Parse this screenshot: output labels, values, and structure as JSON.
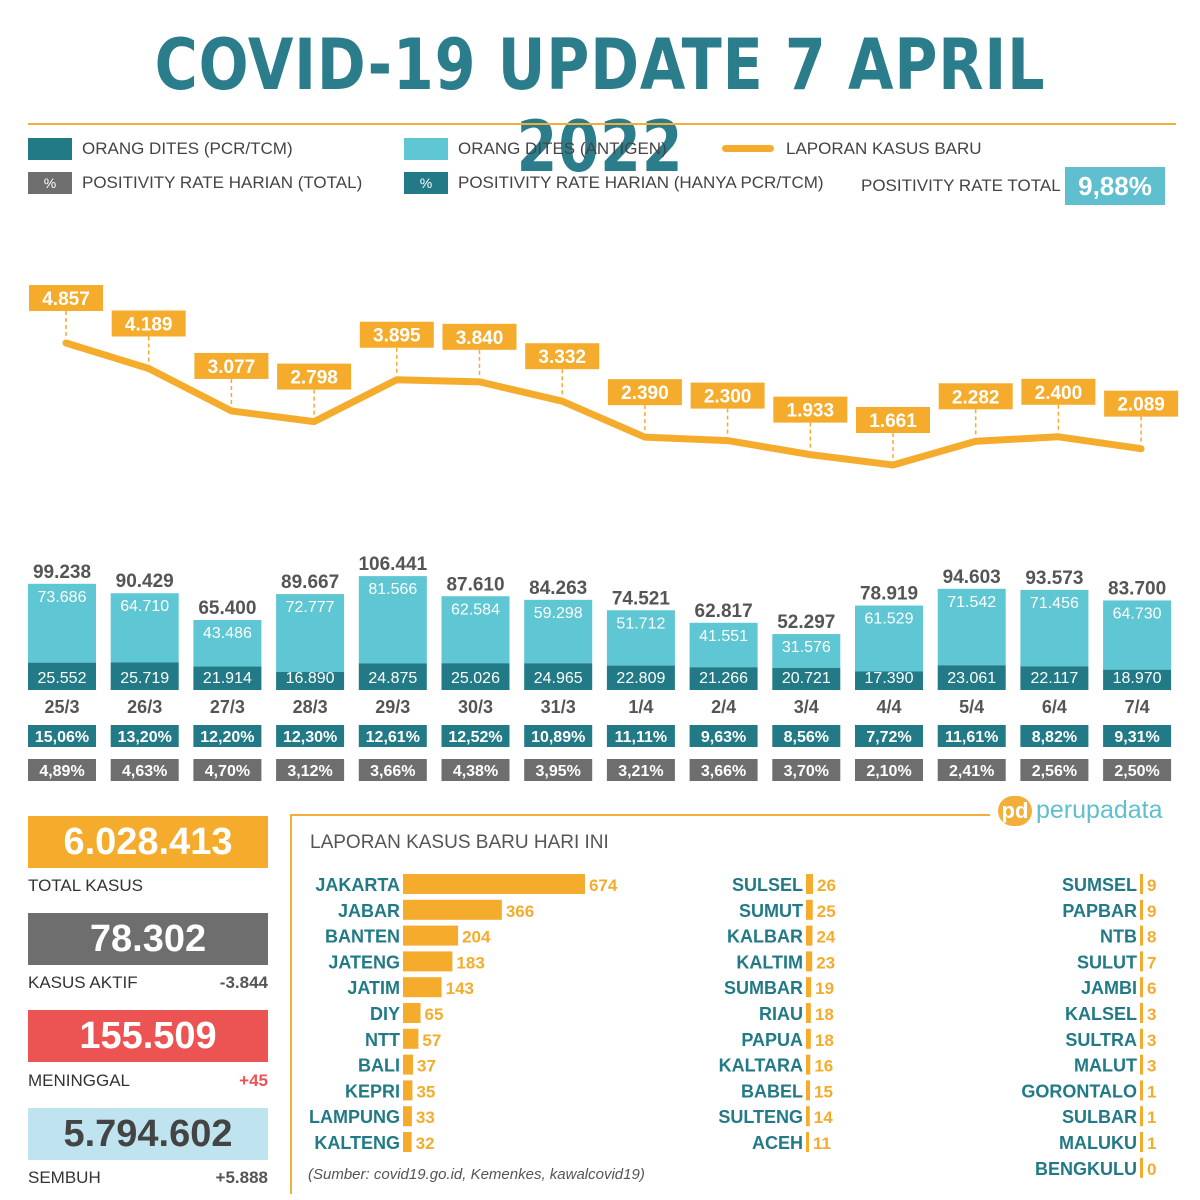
{
  "title": "COVID-19 UPDATE 7 APRIL 2022",
  "legend": {
    "pcr": "ORANG DITES (PCR/TCM)",
    "antigen": "ORANG DITES (ANTIGEN)",
    "cases": "LAPORAN KASUS BARU",
    "pos_total": "POSITIVITY RATE HARIAN (TOTAL)",
    "pos_pcr": "POSITIVITY RATE HARIAN (HANYA PCR/TCM)",
    "pct_symbol": "%",
    "pr_total_label": "POSITIVITY RATE TOTAL",
    "pr_total_value": "9,88%"
  },
  "colors": {
    "pcr": "#217a86",
    "antigen": "#5fc6d3",
    "cases": "#f5ac2d",
    "pos_total": "#6e6e6e",
    "pos_pcr": "#217a86",
    "title": "#2b7d8b",
    "aktif": "#6e6e6e",
    "meninggal": "#ec5453",
    "sembuh": "#bfe4ef"
  },
  "chart_data": {
    "type": "bar",
    "categories": [
      "25/3",
      "26/3",
      "27/3",
      "28/3",
      "29/3",
      "30/3",
      "31/3",
      "1/4",
      "2/4",
      "3/4",
      "4/4",
      "5/4",
      "6/4",
      "7/4"
    ],
    "total_labels": [
      "99.238",
      "90.429",
      "65.400",
      "89.667",
      "106.441",
      "87.610",
      "84.263",
      "74.521",
      "62.817",
      "52.297",
      "78.919",
      "94.603",
      "93.573",
      "83.700"
    ],
    "series": [
      {
        "name": "ORANG DITES (PCR/TCM)",
        "values": [
          25552,
          25719,
          21914,
          16890,
          24875,
          25026,
          24965,
          22809,
          21266,
          20721,
          17390,
          23061,
          22117,
          18970
        ],
        "labels": [
          "25.552",
          "25.719",
          "21.914",
          "16.890",
          "24.875",
          "25.026",
          "24.965",
          "22.809",
          "21.266",
          "20.721",
          "17.390",
          "23.061",
          "22.117",
          "18.970"
        ]
      },
      {
        "name": "ORANG DITES (ANTIGEN)",
        "values": [
          73686,
          64710,
          43486,
          72777,
          81566,
          62584,
          59298,
          51712,
          41551,
          31576,
          61529,
          71542,
          71456,
          64730
        ],
        "labels": [
          "73.686",
          "64.710",
          "43.486",
          "72.777",
          "81.566",
          "62.584",
          "59.298",
          "51.712",
          "41.551",
          "31.576",
          "61.529",
          "71.542",
          "71.456",
          "64.730"
        ]
      }
    ],
    "line": {
      "name": "LAPORAN KASUS BARU",
      "values": [
        4857,
        4189,
        3077,
        2798,
        3895,
        3840,
        3332,
        2390,
        2300,
        1933,
        1661,
        2282,
        2400,
        2089
      ],
      "labels": [
        "4.857",
        "4.189",
        "3.077",
        "2.798",
        "3.895",
        "3.840",
        "3.332",
        "2.390",
        "2.300",
        "1.933",
        "1.661",
        "2.282",
        "2.400",
        "2.089"
      ]
    },
    "positivity_total": [
      "15,06%",
      "13,20%",
      "12,20%",
      "12,30%",
      "12,61%",
      "12,52%",
      "10,89%",
      "11,11%",
      "9,63%",
      "8,56%",
      "7,72%",
      "11,61%",
      "8,82%",
      "9,31%"
    ],
    "positivity_pcr": [
      "4,89%",
      "4,63%",
      "4,70%",
      "3,12%",
      "3,66%",
      "4,38%",
      "3,95%",
      "3,21%",
      "3,66%",
      "3,70%",
      "2,10%",
      "2,41%",
      "2,56%",
      "2,50%"
    ]
  },
  "stats": {
    "total": {
      "value": "6.028.413",
      "label": "TOTAL KASUS"
    },
    "aktif": {
      "value": "78.302",
      "label": "KASUS AKTIF",
      "delta": "-3.844"
    },
    "meninggal": {
      "value": "155.509",
      "label": "MENINGGAL",
      "delta": "+45"
    },
    "sembuh": {
      "value": "5.794.602",
      "label": "SEMBUH",
      "delta": "+5.888"
    }
  },
  "logo": {
    "mark": "pd",
    "text": "perupadata"
  },
  "provinces": {
    "title": "LAPORAN KASUS BARU HARI INI",
    "source": "(Sumber: covid19.go.id, Kemenkes, kawalcovid19)",
    "columns": [
      [
        {
          "name": "JAKARTA",
          "value": 674
        },
        {
          "name": "JABAR",
          "value": 366
        },
        {
          "name": "BANTEN",
          "value": 204
        },
        {
          "name": "JATENG",
          "value": 183
        },
        {
          "name": "JATIM",
          "value": 143
        },
        {
          "name": "DIY",
          "value": 65
        },
        {
          "name": "NTT",
          "value": 57
        },
        {
          "name": "BALI",
          "value": 37
        },
        {
          "name": "KEPRI",
          "value": 35
        },
        {
          "name": "LAMPUNG",
          "value": 33
        },
        {
          "name": "KALTENG",
          "value": 32
        }
      ],
      [
        {
          "name": "SULSEL",
          "value": 26
        },
        {
          "name": "SUMUT",
          "value": 25
        },
        {
          "name": "KALBAR",
          "value": 24
        },
        {
          "name": "KALTIM",
          "value": 23
        },
        {
          "name": "SUMBAR",
          "value": 19
        },
        {
          "name": "RIAU",
          "value": 18
        },
        {
          "name": "PAPUA",
          "value": 18
        },
        {
          "name": "KALTARA",
          "value": 16
        },
        {
          "name": "BABEL",
          "value": 15
        },
        {
          "name": "SULTENG",
          "value": 14
        },
        {
          "name": "ACEH",
          "value": 11
        }
      ],
      [
        {
          "name": "SUMSEL",
          "value": 9
        },
        {
          "name": "PAPBAR",
          "value": 9
        },
        {
          "name": "NTB",
          "value": 8
        },
        {
          "name": "SULUT",
          "value": 7
        },
        {
          "name": "JAMBI",
          "value": 6
        },
        {
          "name": "KALSEL",
          "value": 3
        },
        {
          "name": "SULTRA",
          "value": 3
        },
        {
          "name": "MALUT",
          "value": 3
        },
        {
          "name": "GORONTALO",
          "value": 1
        },
        {
          "name": "SULBAR",
          "value": 1
        },
        {
          "name": "MALUKU",
          "value": 1
        },
        {
          "name": "BENGKULU",
          "value": 0
        }
      ]
    ]
  }
}
